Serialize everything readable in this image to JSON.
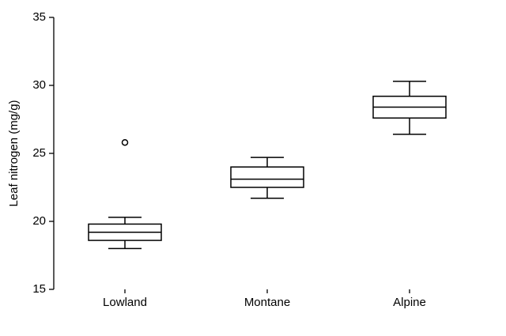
{
  "chart_data": {
    "type": "box",
    "y_label": "Leaf nitrogen (mg/g)",
    "categories": [
      "Lowland",
      "Montane",
      "Alpine"
    ],
    "boxes": [
      {
        "low": 18.0,
        "q1": 18.6,
        "median": 19.2,
        "q3": 19.8,
        "high": 20.3,
        "outliers": [
          25.8
        ]
      },
      {
        "low": 21.7,
        "q1": 22.5,
        "median": 23.1,
        "q3": 24.0,
        "high": 24.7,
        "outliers": []
      },
      {
        "low": 26.4,
        "q1": 27.6,
        "median": 28.4,
        "q3": 29.2,
        "high": 30.3,
        "outliers": []
      }
    ],
    "color": "#000000",
    "ylim": [
      15,
      35
    ],
    "yticks": [
      15,
      20,
      25,
      30,
      35
    ]
  }
}
